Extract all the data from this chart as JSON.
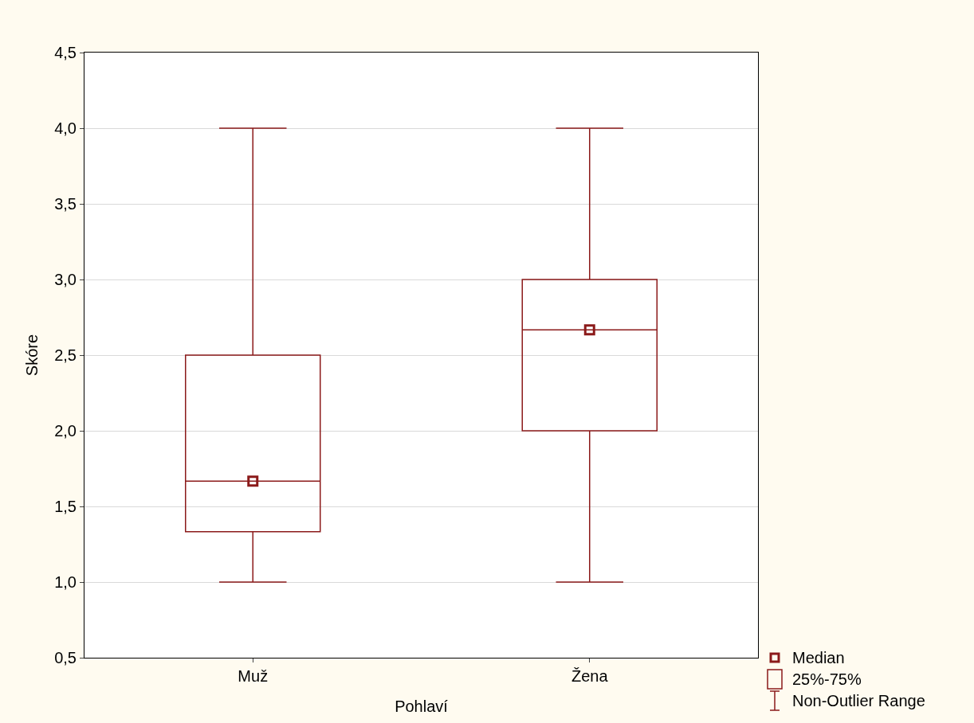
{
  "chart_data": {
    "type": "box",
    "xlabel": "Pohlaví",
    "ylabel": "Skóre",
    "categories": [
      "Muž",
      "Žena"
    ],
    "boxes": [
      {
        "low": 1.0,
        "q1": 1.333,
        "median": 1.667,
        "q3": 2.5,
        "high": 4.0
      },
      {
        "low": 1.0,
        "q1": 2.0,
        "median": 2.667,
        "q3": 3.0,
        "high": 4.0
      }
    ],
    "color": "#8b1a1a",
    "marker": "square",
    "ylim": [
      0.5,
      4.5
    ],
    "yticks": [
      {
        "value": 0.5,
        "label": "0,5"
      },
      {
        "value": 1,
        "label": "1,0"
      },
      {
        "value": 1.5,
        "label": "1,5"
      },
      {
        "value": 2,
        "label": "2,0"
      },
      {
        "value": 2.5,
        "label": "2,5"
      },
      {
        "value": 3,
        "label": "3,0"
      },
      {
        "value": 3.5,
        "label": "3,5"
      },
      {
        "value": 4,
        "label": "4,0"
      },
      {
        "value": 4.5,
        "label": "4,5"
      }
    ],
    "series": [
      {
        "type": "scatter",
        "x": [
          "Muž",
          "Žena"
        ],
        "values": [
          1.667,
          2.667
        ],
        "color": "#8b1a1a"
      }
    ],
    "grid": "y",
    "annotations": [
      "Median",
      "25%-75%",
      "Non-Outlier Range"
    ]
  }
}
